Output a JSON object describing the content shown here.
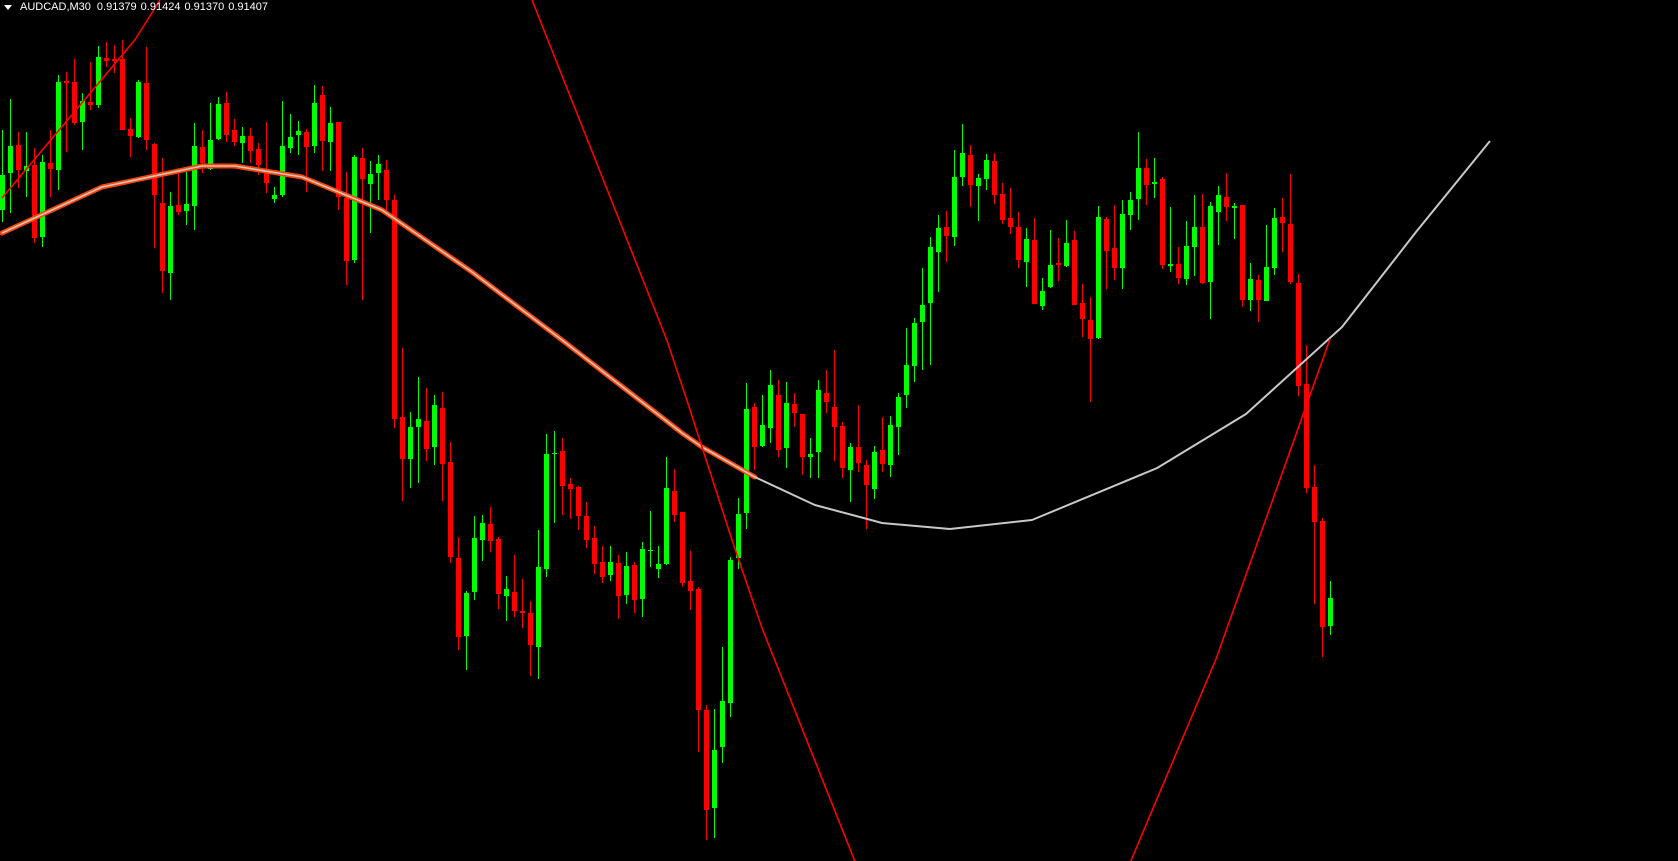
{
  "header": {
    "symbol_timeframe": "AUDCAD,M30",
    "open": "0.91379",
    "high": "0.91424",
    "low": "0.91370",
    "close": "0.91407",
    "menu_icon": "triangle-down-icon"
  },
  "colors": {
    "background": "#000000",
    "bull_candle": "#00ff00",
    "bear_candle": "#ff0000",
    "ma_outer": "#ff4500",
    "ma_inner": "#c8c8c8",
    "silver_curve": "#c8c8c8",
    "red_curve": "#ff0000"
  },
  "chart_data": {
    "type": "candlestick",
    "symbol": "AUDCAD",
    "timeframe": "M30",
    "ylim": [
      0.91144,
      0.92005
    ],
    "xlim": [
      -0.25,
      209.5
    ],
    "grid": false,
    "candle_format": [
      "open",
      "high",
      "low",
      "close"
    ],
    "candles": [
      [
        0.91795,
        0.91875,
        0.91783,
        0.9183
      ],
      [
        0.91832,
        0.91906,
        0.91792,
        0.91859
      ],
      [
        0.9186,
        0.91873,
        0.91817,
        0.91835
      ],
      [
        0.91834,
        0.91873,
        0.91808,
        0.91839
      ],
      [
        0.9184,
        0.91857,
        0.91762,
        0.91767
      ],
      [
        0.91768,
        0.9185,
        0.91758,
        0.91843
      ],
      [
        0.91842,
        0.91875,
        0.91808,
        0.91836
      ],
      [
        0.91835,
        0.9193,
        0.91815,
        0.91923
      ],
      [
        0.91924,
        0.91933,
        0.91853,
        0.91922
      ],
      [
        0.91923,
        0.91946,
        0.9188,
        0.91882
      ],
      [
        0.91883,
        0.91912,
        0.91855,
        0.91904
      ],
      [
        0.91903,
        0.91943,
        0.91895,
        0.919
      ],
      [
        0.919,
        0.91959,
        0.91897,
        0.91948
      ],
      [
        0.91947,
        0.91963,
        0.91938,
        0.91944
      ],
      [
        0.91946,
        0.9196,
        0.91932,
        0.91944
      ],
      [
        0.91946,
        0.91965,
        0.91875,
        0.91875
      ],
      [
        0.91876,
        0.91887,
        0.91848,
        0.91869
      ],
      [
        0.91868,
        0.91925,
        0.91867,
        0.91923
      ],
      [
        0.91922,
        0.91958,
        0.91855,
        0.91865
      ],
      [
        0.91861,
        0.91862,
        0.91757,
        0.9181
      ],
      [
        0.91802,
        0.91847,
        0.91712,
        0.91734
      ],
      [
        0.91732,
        0.91813,
        0.91705,
        0.91799
      ],
      [
        0.918,
        0.91832,
        0.9179,
        0.91793
      ],
      [
        0.91794,
        0.91833,
        0.9178,
        0.91801
      ],
      [
        0.91799,
        0.91882,
        0.91775,
        0.91859
      ],
      [
        0.91858,
        0.91875,
        0.91832,
        0.91842
      ],
      [
        0.91836,
        0.91902,
        0.91835,
        0.91865
      ],
      [
        0.91866,
        0.91908,
        0.91865,
        0.91901
      ],
      [
        0.91902,
        0.91913,
        0.91863,
        0.9187
      ],
      [
        0.91875,
        0.91886,
        0.91859,
        0.91863
      ],
      [
        0.91862,
        0.91878,
        0.91842,
        0.91869
      ],
      [
        0.91869,
        0.91877,
        0.91842,
        0.91854
      ],
      [
        0.91856,
        0.91862,
        0.9183,
        0.9184
      ],
      [
        0.91835,
        0.91883,
        0.91812,
        0.91822
      ],
      [
        0.91806,
        0.91818,
        0.91802,
        0.9181
      ],
      [
        0.9181,
        0.91904,
        0.91808,
        0.91859
      ],
      [
        0.91857,
        0.91891,
        0.91852,
        0.91868
      ],
      [
        0.9187,
        0.91884,
        0.9185,
        0.91874
      ],
      [
        0.91873,
        0.91876,
        0.91813,
        0.91858
      ],
      [
        0.91859,
        0.9192,
        0.91852,
        0.91902
      ],
      [
        0.9191,
        0.91919,
        0.91834,
        0.91864
      ],
      [
        0.91863,
        0.91898,
        0.91834,
        0.91882
      ],
      [
        0.91883,
        0.91883,
        0.91795,
        0.91808
      ],
      [
        0.91807,
        0.91833,
        0.9172,
        0.91744
      ],
      [
        0.91745,
        0.9185,
        0.91742,
        0.91848
      ],
      [
        0.91847,
        0.91857,
        0.91705,
        0.91826
      ],
      [
        0.91821,
        0.91844,
        0.91772,
        0.91831
      ],
      [
        0.91832,
        0.9185,
        0.91805,
        0.91841
      ],
      [
        0.91835,
        0.91845,
        0.9179,
        0.91805
      ],
      [
        0.91805,
        0.9181,
        0.91577,
        0.91586
      ],
      [
        0.91588,
        0.91657,
        0.91504,
        0.91546
      ],
      [
        0.91546,
        0.91593,
        0.91517,
        0.91578
      ],
      [
        0.91578,
        0.91628,
        0.91522,
        0.91586
      ],
      [
        0.91584,
        0.91617,
        0.91544,
        0.91556
      ],
      [
        0.91558,
        0.9161,
        0.9154,
        0.916
      ],
      [
        0.91597,
        0.91613,
        0.91504,
        0.91541
      ],
      [
        0.91543,
        0.91563,
        0.91442,
        0.91448
      ],
      [
        0.91447,
        0.91468,
        0.91355,
        0.91368
      ],
      [
        0.91369,
        0.91414,
        0.91335,
        0.91412
      ],
      [
        0.91413,
        0.91489,
        0.91405,
        0.91467
      ],
      [
        0.91465,
        0.9149,
        0.91444,
        0.91482
      ],
      [
        0.91481,
        0.91498,
        0.91453,
        0.91464
      ],
      [
        0.91466,
        0.91468,
        0.91396,
        0.91411
      ],
      [
        0.91409,
        0.91429,
        0.91384,
        0.91416
      ],
      [
        0.91413,
        0.9145,
        0.91388,
        0.91394
      ],
      [
        0.91394,
        0.91426,
        0.91377,
        0.91392
      ],
      [
        0.91392,
        0.91404,
        0.91329,
        0.9136
      ],
      [
        0.91358,
        0.91475,
        0.91326,
        0.91438
      ],
      [
        0.91436,
        0.91571,
        0.91428,
        0.91551
      ],
      [
        0.91551,
        0.91574,
        0.91482,
        0.91552
      ],
      [
        0.91554,
        0.91567,
        0.9149,
        0.91519
      ],
      [
        0.91521,
        0.91527,
        0.91486,
        0.91516
      ],
      [
        0.91518,
        0.91519,
        0.91475,
        0.91489
      ],
      [
        0.91489,
        0.91503,
        0.91457,
        0.91465
      ],
      [
        0.91467,
        0.91479,
        0.91431,
        0.91441
      ],
      [
        0.91443,
        0.91459,
        0.91422,
        0.91428
      ],
      [
        0.9143,
        0.91459,
        0.91424,
        0.91443
      ],
      [
        0.91442,
        0.9145,
        0.91386,
        0.91409
      ],
      [
        0.9141,
        0.91453,
        0.91401,
        0.91439
      ],
      [
        0.9144,
        0.91443,
        0.91392,
        0.91405
      ],
      [
        0.91406,
        0.91463,
        0.91388,
        0.91456
      ],
      [
        0.91454,
        0.91494,
        0.91438,
        0.91455
      ],
      [
        0.91436,
        0.91459,
        0.91427,
        0.91441
      ],
      [
        0.91441,
        0.91548,
        0.9144,
        0.91517
      ],
      [
        0.91514,
        0.91536,
        0.91483,
        0.9149
      ],
      [
        0.91493,
        0.91493,
        0.91418,
        0.91422
      ],
      [
        0.91424,
        0.91454,
        0.91395,
        0.91414
      ],
      [
        0.91416,
        0.91418,
        0.91253,
        0.91295
      ],
      [
        0.91295,
        0.913,
        0.91165,
        0.91195
      ],
      [
        0.91197,
        0.91296,
        0.91167,
        0.91255
      ],
      [
        0.91258,
        0.91358,
        0.91242,
        0.91304
      ],
      [
        0.91302,
        0.91448,
        0.91288,
        0.91445
      ],
      [
        0.91447,
        0.91507,
        0.91436,
        0.91491
      ],
      [
        0.91492,
        0.91622,
        0.91476,
        0.91596
      ],
      [
        0.91598,
        0.91602,
        0.91535,
        0.91558
      ],
      [
        0.91559,
        0.9161,
        0.91558,
        0.9158
      ],
      [
        0.91577,
        0.91635,
        0.91562,
        0.9162
      ],
      [
        0.9161,
        0.91625,
        0.91548,
        0.91555
      ],
      [
        0.91557,
        0.91623,
        0.91537,
        0.91602
      ],
      [
        0.91601,
        0.91612,
        0.91578,
        0.91592
      ],
      [
        0.91591,
        0.91591,
        0.9153,
        0.91548
      ],
      [
        0.91548,
        0.91567,
        0.91527,
        0.91551
      ],
      [
        0.91553,
        0.91625,
        0.91527,
        0.91615
      ],
      [
        0.91612,
        0.91635,
        0.91592,
        0.91603
      ],
      [
        0.91598,
        0.91655,
        0.91544,
        0.91578
      ],
      [
        0.91579,
        0.91583,
        0.91527,
        0.91537
      ],
      [
        0.91535,
        0.91562,
        0.91503,
        0.91558
      ],
      [
        0.91558,
        0.916,
        0.91533,
        0.91542
      ],
      [
        0.9154,
        0.91545,
        0.91476,
        0.9152
      ],
      [
        0.91516,
        0.91559,
        0.91506,
        0.91553
      ],
      [
        0.91555,
        0.91588,
        0.91533,
        0.91541
      ],
      [
        0.9154,
        0.91589,
        0.91528,
        0.9158
      ],
      [
        0.91578,
        0.91612,
        0.9155,
        0.91608
      ],
      [
        0.9161,
        0.91677,
        0.91597,
        0.9164
      ],
      [
        0.91639,
        0.91687,
        0.91623,
        0.91682
      ],
      [
        0.91683,
        0.91737,
        0.91635,
        0.917
      ],
      [
        0.91702,
        0.91768,
        0.9164,
        0.91758
      ],
      [
        0.91753,
        0.9179,
        0.91713,
        0.91777
      ],
      [
        0.91778,
        0.91794,
        0.91743,
        0.91769
      ],
      [
        0.91768,
        0.91855,
        0.91759,
        0.91828
      ],
      [
        0.91828,
        0.91881,
        0.91819,
        0.91852
      ],
      [
        0.9185,
        0.9186,
        0.91798,
        0.9182
      ],
      [
        0.91819,
        0.91831,
        0.91784,
        0.91827
      ],
      [
        0.91826,
        0.91851,
        0.91815,
        0.91845
      ],
      [
        0.91844,
        0.91852,
        0.91801,
        0.9181
      ],
      [
        0.91811,
        0.91822,
        0.91781,
        0.91785
      ],
      [
        0.91787,
        0.91817,
        0.91771,
        0.91778
      ],
      [
        0.91778,
        0.91793,
        0.91737,
        0.91745
      ],
      [
        0.91743,
        0.91777,
        0.91718,
        0.91766
      ],
      [
        0.91765,
        0.91787,
        0.91701,
        0.91701
      ],
      [
        0.91699,
        0.91727,
        0.91695,
        0.91714
      ],
      [
        0.91718,
        0.91775,
        0.91717,
        0.9174
      ],
      [
        0.91742,
        0.91767,
        0.91724,
        0.9174
      ],
      [
        0.91739,
        0.91785,
        0.91738,
        0.91762
      ],
      [
        0.91765,
        0.91774,
        0.917,
        0.917
      ],
      [
        0.91702,
        0.91721,
        0.91668,
        0.91686
      ],
      [
        0.91685,
        0.91708,
        0.91603,
        0.91666
      ],
      [
        0.91667,
        0.91799,
        0.91666,
        0.91788
      ],
      [
        0.91786,
        0.91788,
        0.91716,
        0.91754
      ],
      [
        0.91757,
        0.918,
        0.91725,
        0.91737
      ],
      [
        0.91737,
        0.91805,
        0.91716,
        0.91791
      ],
      [
        0.9179,
        0.91813,
        0.91775,
        0.91805
      ],
      [
        0.91806,
        0.91873,
        0.91785,
        0.91837
      ],
      [
        0.91837,
        0.91846,
        0.918,
        0.9182
      ],
      [
        0.91821,
        0.91847,
        0.91807,
        0.91823
      ],
      [
        0.91826,
        0.91828,
        0.91736,
        0.9174
      ],
      [
        0.91739,
        0.91798,
        0.91733,
        0.91741
      ],
      [
        0.91741,
        0.91758,
        0.91721,
        0.91727
      ],
      [
        0.91726,
        0.91784,
        0.9172,
        0.91759
      ],
      [
        0.91758,
        0.9181,
        0.91729,
        0.91778
      ],
      [
        0.91778,
        0.91811,
        0.91721,
        0.91722
      ],
      [
        0.91723,
        0.91803,
        0.91686,
        0.91799
      ],
      [
        0.91793,
        0.91819,
        0.9176,
        0.9181
      ],
      [
        0.91808,
        0.91832,
        0.91784,
        0.91798
      ],
      [
        0.91797,
        0.91802,
        0.91766,
        0.91799
      ],
      [
        0.918,
        0.918,
        0.91698,
        0.91705
      ],
      [
        0.91705,
        0.91742,
        0.91694,
        0.91726
      ],
      [
        0.91725,
        0.9173,
        0.91683,
        0.91705
      ],
      [
        0.91704,
        0.9178,
        0.91704,
        0.91738
      ],
      [
        0.91737,
        0.91797,
        0.9173,
        0.91787
      ],
      [
        0.91788,
        0.91807,
        0.91753,
        0.91782
      ],
      [
        0.91781,
        0.91831,
        0.91721,
        0.91723
      ],
      [
        0.91722,
        0.91731,
        0.91609,
        0.91619
      ],
      [
        0.91621,
        0.9166,
        0.91512,
        0.91517
      ],
      [
        0.91518,
        0.9154,
        0.91401,
        0.91483
      ],
      [
        0.91484,
        0.91487,
        0.91348,
        0.91378
      ],
      [
        0.91379,
        0.91424,
        0.9137,
        0.91407
      ]
    ],
    "indicators": [
      {
        "id": "ma-curve",
        "style": "ma",
        "points": [
          [
            0,
            0.91772
          ],
          [
            12.5,
            0.91818
          ],
          [
            25,
            0.91839
          ],
          [
            29.1,
            0.91839
          ],
          [
            37.5,
            0.91828
          ],
          [
            47.5,
            0.91795
          ],
          [
            58.75,
            0.91733
          ],
          [
            70,
            0.91665
          ],
          [
            85,
            0.91572
          ],
          [
            87.5,
            0.91558
          ],
          [
            94.1,
            0.91528
          ]
        ]
      },
      {
        "id": "silver-curve",
        "style": "silver",
        "points": [
          [
            94.1,
            0.91528
          ],
          [
            101.6,
            0.915
          ],
          [
            107.7,
            0.91487
          ],
          [
            110,
            0.91482
          ],
          [
            118.5,
            0.91476
          ],
          [
            128.75,
            0.91485
          ],
          [
            144.4,
            0.91537
          ],
          [
            155.5,
            0.91591
          ],
          [
            167.5,
            0.91678
          ],
          [
            176.75,
            0.91773
          ],
          [
            186,
            0.91864
          ]
        ]
      },
      {
        "id": "red-curve-left",
        "style": "red",
        "points": [
          [
            0,
            0.91807
          ],
          [
            16.6,
            0.91965
          ],
          [
            19.75,
            0.92005
          ]
        ]
      },
      {
        "id": "red-curve-middle",
        "style": "red",
        "points": [
          [
            66.25,
            0.92005
          ],
          [
            83.1,
            0.91665
          ],
          [
            85.6,
            0.91605
          ],
          [
            91.25,
            0.91465
          ],
          [
            95,
            0.91377
          ],
          [
            106.6,
            0.91144
          ]
        ]
      },
      {
        "id": "red-curve-right",
        "style": "red",
        "points": [
          [
            141.1,
            0.91144
          ],
          [
            151.75,
            0.91346
          ],
          [
            166,
            0.91666
          ]
        ]
      }
    ]
  }
}
